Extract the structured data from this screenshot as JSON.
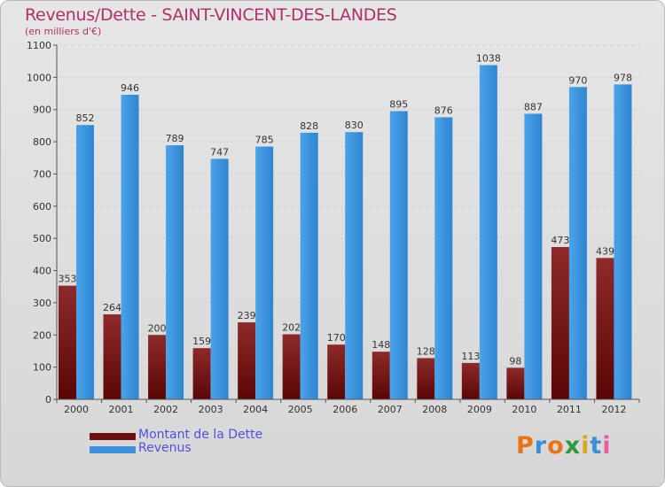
{
  "header": {
    "title": "Revenus/Dette - SAINT-VINCENT-DES-LANDES",
    "subtitle": "(en milliers d'€)"
  },
  "logo": {
    "text": "Proxiti",
    "colors": [
      "#e8741a",
      "#3a8fd6",
      "#e8741a",
      "#2f9a3c",
      "#d9a81b",
      "#3a8fd6",
      "#e85fa0"
    ]
  },
  "colors": {
    "dette": "#8b1a1a",
    "revenus": "#3b93de",
    "axis": "#555555",
    "grid": "#cfcfcf",
    "text": "#333333"
  },
  "chart_data": {
    "type": "bar",
    "title": "Revenus/Dette - SAINT-VINCENT-DES-LANDES",
    "subtitle": "(en milliers d'€)",
    "categories": [
      "2000",
      "2001",
      "2002",
      "2003",
      "2004",
      "2005",
      "2006",
      "2007",
      "2008",
      "2009",
      "2010",
      "2011",
      "2012"
    ],
    "series": [
      {
        "name": "Montant de la Dette",
        "values": [
          353,
          264,
          200,
          159,
          239,
          202,
          170,
          148,
          128,
          113,
          98,
          473,
          439
        ],
        "labels": [
          "353",
          "264",
          "200",
          "159",
          "239",
          "202",
          "170",
          "148",
          "128",
          "113",
          "98",
          "473",
          "439"
        ]
      },
      {
        "name": "Revenus",
        "values": [
          852,
          946,
          789,
          747,
          785,
          828,
          830,
          895,
          876,
          1038,
          887,
          970,
          978
        ],
        "labels": [
          "852",
          "946",
          "789",
          "747",
          "785",
          "828",
          "830",
          "895",
          "876",
          "1038",
          "887",
          "970",
          "978"
        ]
      }
    ],
    "ylim": [
      0,
      1100
    ],
    "yticks": [
      0,
      100,
      200,
      300,
      400,
      500,
      600,
      700,
      800,
      900,
      1000,
      1100
    ],
    "ytick_labels": [
      "0",
      "100",
      "200",
      "300",
      "400",
      "500",
      "600",
      "700",
      "800",
      "900",
      "1000",
      "1100"
    ],
    "grid": true,
    "legend": "bottom-left"
  }
}
